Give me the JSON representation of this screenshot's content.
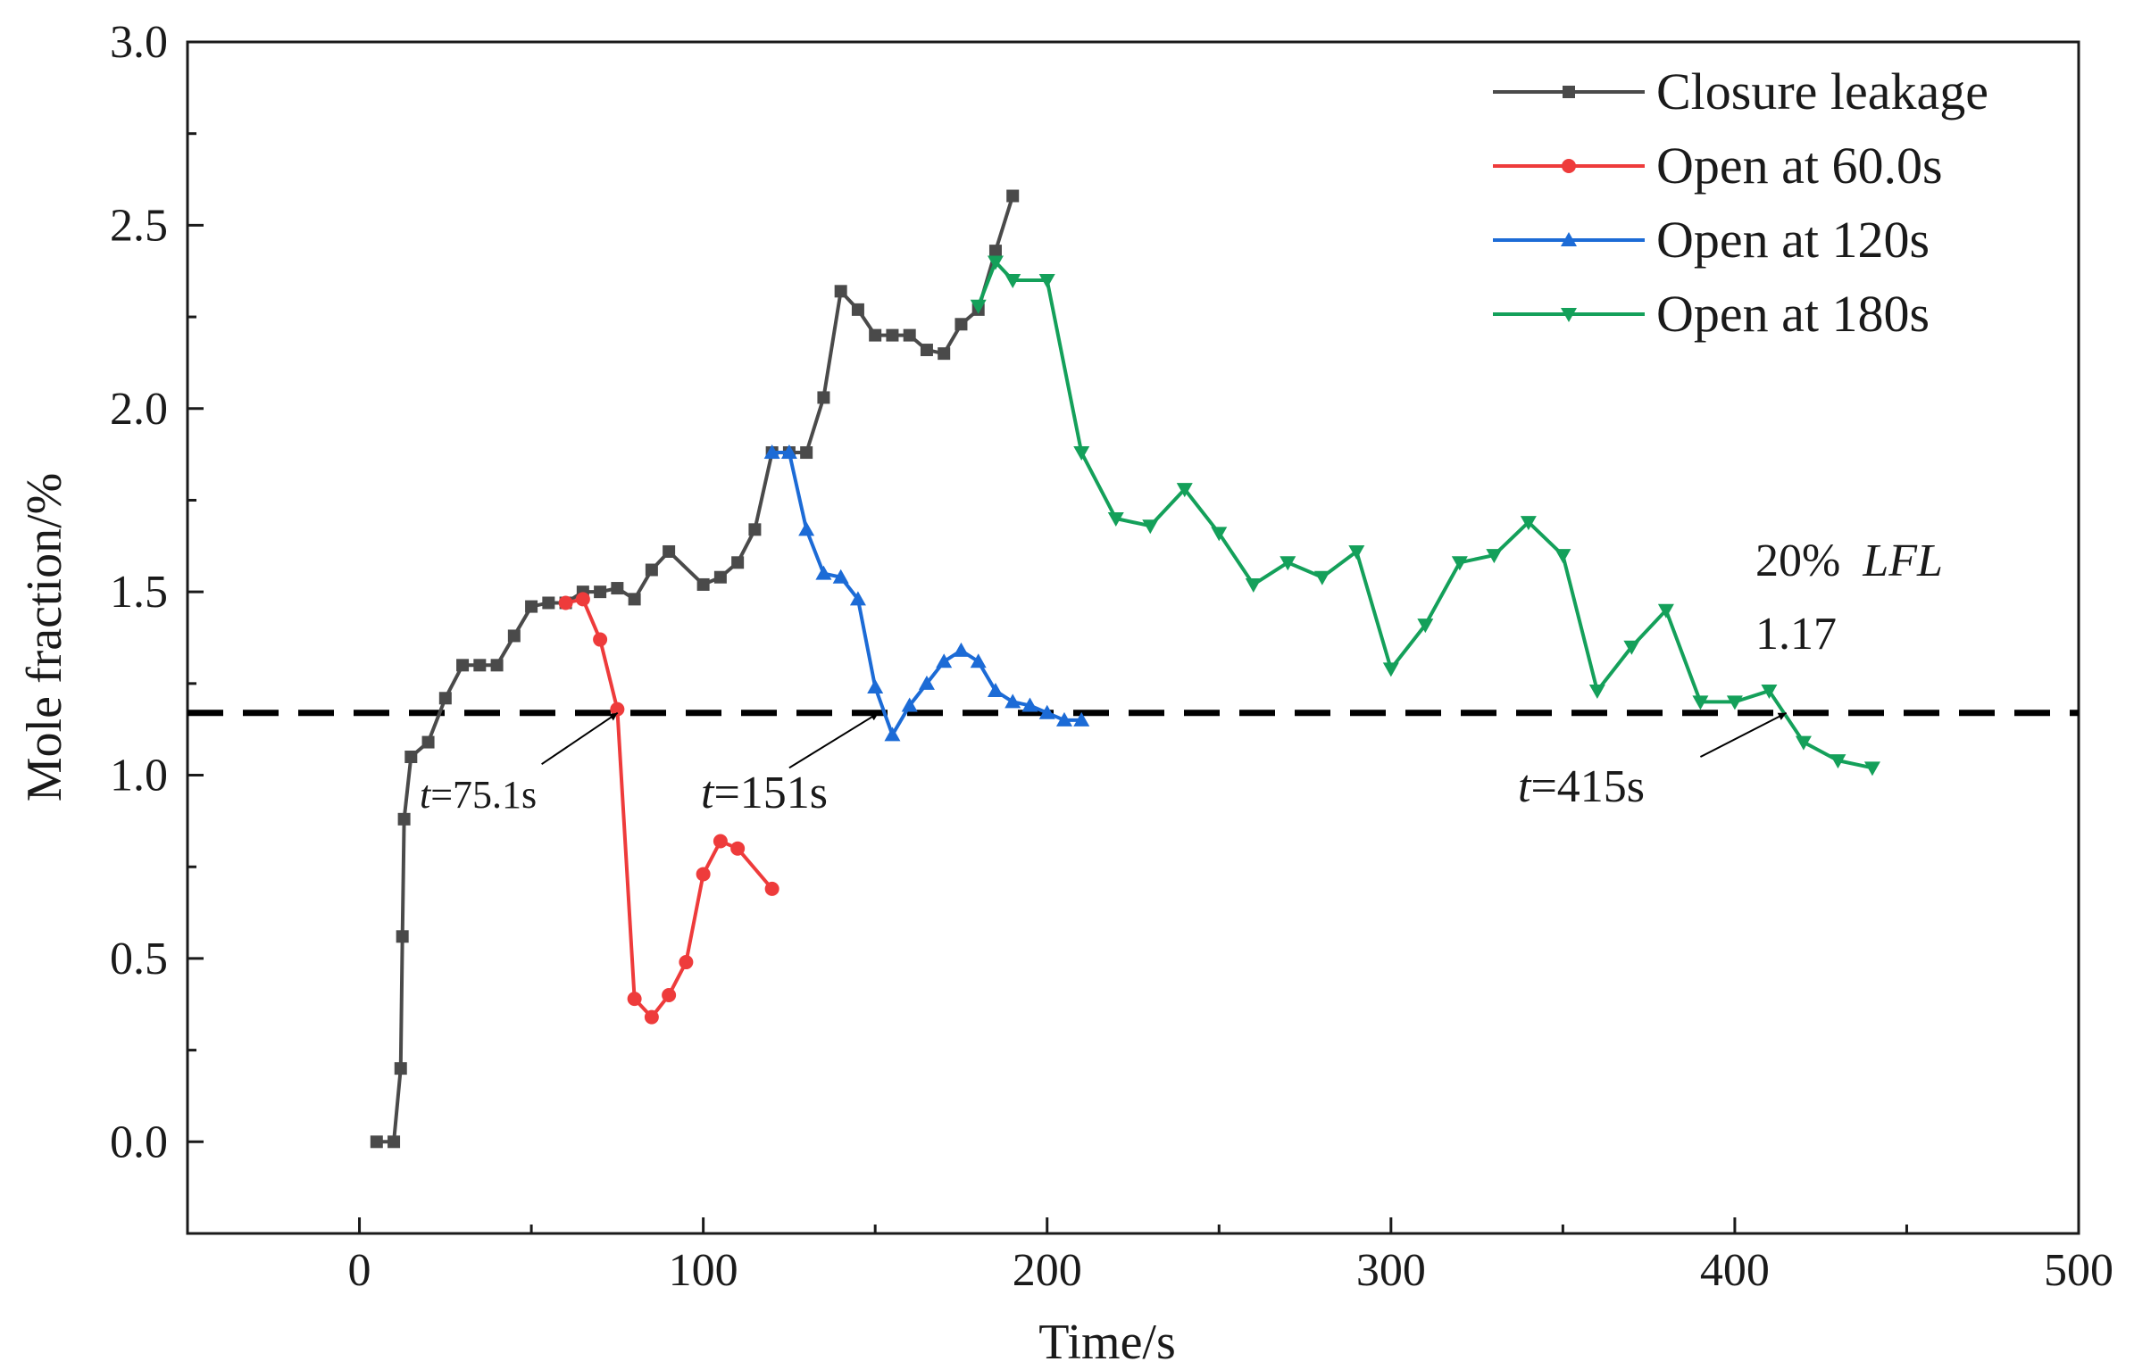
{
  "chart_data": {
    "type": "line",
    "xlabel": "Time/s",
    "ylabel": "Mole fraction/%",
    "xlim": [
      -50,
      500
    ],
    "ylim": [
      -0.25,
      3.0
    ],
    "xticks": [
      0,
      100,
      200,
      300,
      400,
      500
    ],
    "yticks": [
      0.0,
      0.5,
      1.0,
      1.5,
      2.0,
      2.5,
      3.0
    ],
    "grid": false,
    "legend_position": "top-right",
    "series": [
      {
        "name": "Closure leakage",
        "color": "#4a4a4a",
        "marker": "square",
        "points": [
          [
            5,
            0.0
          ],
          [
            10,
            0.0
          ],
          [
            12,
            0.2
          ],
          [
            12.5,
            0.56
          ],
          [
            13,
            0.88
          ],
          [
            15,
            1.05
          ],
          [
            20,
            1.09
          ],
          [
            25,
            1.21
          ],
          [
            30,
            1.3
          ],
          [
            35,
            1.3
          ],
          [
            40,
            1.3
          ],
          [
            45,
            1.38
          ],
          [
            50,
            1.46
          ],
          [
            55,
            1.47
          ],
          [
            60,
            1.47
          ],
          [
            65,
            1.5
          ],
          [
            70,
            1.5
          ],
          [
            75,
            1.51
          ],
          [
            80,
            1.48
          ],
          [
            85,
            1.56
          ],
          [
            90,
            1.61
          ],
          [
            100,
            1.52
          ],
          [
            105,
            1.54
          ],
          [
            110,
            1.58
          ],
          [
            115,
            1.67
          ],
          [
            120,
            1.88
          ],
          [
            125,
            1.88
          ],
          [
            130,
            1.88
          ],
          [
            135,
            2.03
          ],
          [
            140,
            2.32
          ],
          [
            145,
            2.27
          ],
          [
            150,
            2.2
          ],
          [
            155,
            2.2
          ],
          [
            160,
            2.2
          ],
          [
            165,
            2.16
          ],
          [
            170,
            2.15
          ],
          [
            175,
            2.23
          ],
          [
            180,
            2.27
          ],
          [
            185,
            2.43
          ],
          [
            190,
            2.58
          ]
        ]
      },
      {
        "name": "Open at 60.0s",
        "color": "#ee3b3b",
        "marker": "circle",
        "points": [
          [
            60,
            1.47
          ],
          [
            65,
            1.48
          ],
          [
            70,
            1.37
          ],
          [
            75,
            1.18
          ],
          [
            80,
            0.39
          ],
          [
            85,
            0.34
          ],
          [
            90,
            0.4
          ],
          [
            95,
            0.49
          ],
          [
            100,
            0.73
          ],
          [
            105,
            0.82
          ],
          [
            110,
            0.8
          ],
          [
            120,
            0.69
          ]
        ]
      },
      {
        "name": "Open at 120s",
        "color": "#1c6bd6",
        "marker": "triangle-up",
        "points": [
          [
            120,
            1.88
          ],
          [
            125,
            1.88
          ],
          [
            130,
            1.67
          ],
          [
            135,
            1.55
          ],
          [
            140,
            1.54
          ],
          [
            145,
            1.48
          ],
          [
            150,
            1.24
          ],
          [
            155,
            1.11
          ],
          [
            160,
            1.19
          ],
          [
            165,
            1.25
          ],
          [
            170,
            1.31
          ],
          [
            175,
            1.34
          ],
          [
            180,
            1.31
          ],
          [
            185,
            1.23
          ],
          [
            190,
            1.2
          ],
          [
            195,
            1.19
          ],
          [
            200,
            1.17
          ],
          [
            205,
            1.15
          ],
          [
            210,
            1.15
          ]
        ]
      },
      {
        "name": "Open at 180s",
        "color": "#14a05a",
        "marker": "triangle-down",
        "points": [
          [
            180,
            2.28
          ],
          [
            185,
            2.4
          ],
          [
            190,
            2.35
          ],
          [
            200,
            2.35
          ],
          [
            210,
            1.88
          ],
          [
            220,
            1.7
          ],
          [
            230,
            1.68
          ],
          [
            240,
            1.78
          ],
          [
            250,
            1.66
          ],
          [
            260,
            1.52
          ],
          [
            270,
            1.58
          ],
          [
            280,
            1.54
          ],
          [
            290,
            1.61
          ],
          [
            300,
            1.29
          ],
          [
            310,
            1.41
          ],
          [
            320,
            1.58
          ],
          [
            330,
            1.6
          ],
          [
            340,
            1.69
          ],
          [
            350,
            1.6
          ],
          [
            360,
            1.23
          ],
          [
            370,
            1.35
          ],
          [
            380,
            1.45
          ],
          [
            390,
            1.2
          ],
          [
            400,
            1.2
          ],
          [
            410,
            1.23
          ],
          [
            420,
            1.09
          ],
          [
            430,
            1.04
          ],
          [
            440,
            1.02
          ]
        ]
      }
    ],
    "reference_line": {
      "y": 1.17,
      "style": "dashed",
      "color": "#000000"
    },
    "annotations": {
      "lfl_label": "20%",
      "lfl_italic": "LFL",
      "lfl_value": "1.17",
      "t1_t": "t",
      "t1_rest": "=75.1s",
      "t2_t": "t",
      "t2_rest": "=151s",
      "t3_t": "t",
      "t3_rest": "=415s",
      "arrows": [
        {
          "from": [
            53,
            1.03
          ],
          "to": [
            75.1,
            1.17
          ]
        },
        {
          "from": [
            125,
            1.02
          ],
          "to": [
            151,
            1.17
          ]
        },
        {
          "from": [
            390,
            1.05
          ],
          "to": [
            415,
            1.17
          ]
        }
      ]
    }
  }
}
